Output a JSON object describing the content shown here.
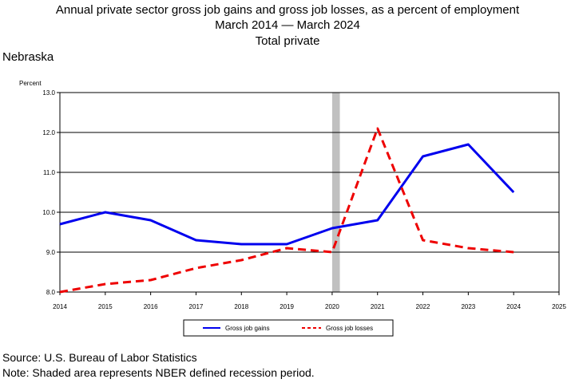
{
  "title": {
    "line1": "Annual private sector gross job gains and gross job losses, as a percent of employment",
    "line2": "March 2014 — March 2024",
    "line3": "Total private"
  },
  "region": "Nebraska",
  "footer": {
    "source": "Source: U.S. Bureau of Labor Statistics",
    "note": "Note: Shaded area represents NBER defined recession period."
  },
  "chart_data": {
    "type": "line",
    "ylabel": "Percent",
    "xlabel": "",
    "xlim": [
      2014,
      2025
    ],
    "ylim": [
      8.0,
      13.0
    ],
    "x_ticks": [
      "2014",
      "2015",
      "2016",
      "2017",
      "2018",
      "2019",
      "2020",
      "2021",
      "2022",
      "2023",
      "2024",
      "2025"
    ],
    "y_ticks": [
      "8.0",
      "9.0",
      "10.0",
      "11.0",
      "12.0",
      "13.0"
    ],
    "grid": "horizontal",
    "recession": {
      "start": 2020.0,
      "end": 2020.17
    },
    "x": [
      2014,
      2015,
      2016,
      2017,
      2018,
      2019,
      2020,
      2021,
      2022,
      2023,
      2024
    ],
    "series": [
      {
        "name": "Gross job gains",
        "color": "#0000ee",
        "style": "solid",
        "values": [
          9.7,
          10.0,
          9.8,
          9.3,
          9.2,
          9.2,
          9.6,
          9.8,
          11.4,
          11.7,
          10.5
        ]
      },
      {
        "name": "Gross job losses",
        "color": "#ee0000",
        "style": "dashed",
        "values": [
          8.0,
          8.2,
          8.3,
          8.6,
          8.8,
          9.1,
          9.0,
          12.1,
          9.3,
          9.1,
          9.0
        ]
      }
    ],
    "legend_position": "bottom-center",
    "recession_color": "#c0c0c0"
  }
}
